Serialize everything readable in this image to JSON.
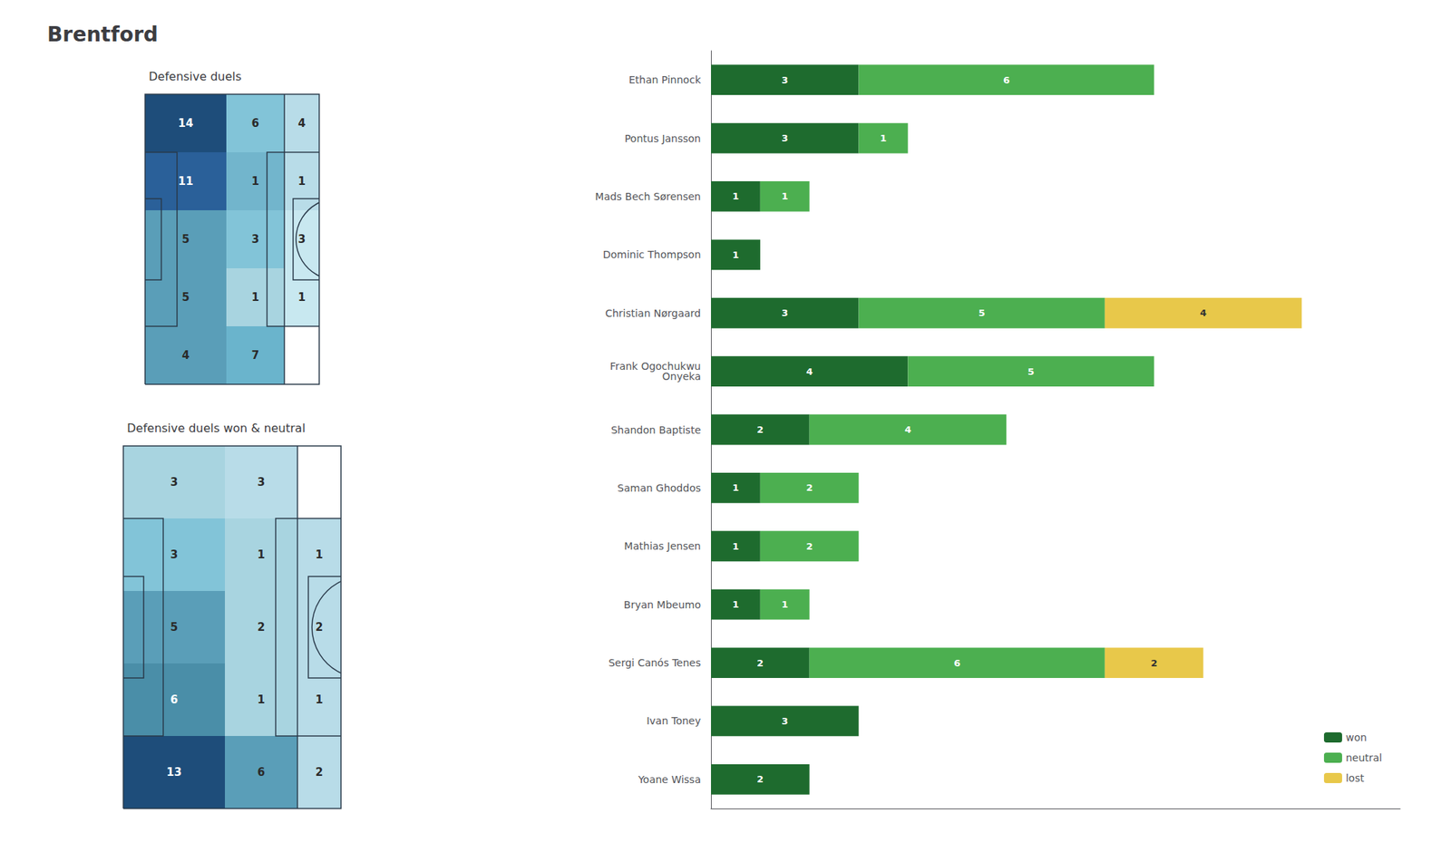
{
  "title": "Brentford",
  "chart_data": [
    {
      "type": "heatmap",
      "title": "Defensive duels",
      "values": [
        [
          14,
          6,
          4
        ],
        [
          11,
          1,
          1
        ],
        [
          5,
          3,
          3
        ],
        [
          5,
          1,
          1
        ],
        [
          4,
          7,
          0
        ]
      ],
      "value_labels": [
        [
          "14",
          "6",
          "4"
        ],
        [
          "11",
          "1",
          "1"
        ],
        [
          "5",
          "3",
          "3"
        ],
        [
          "5",
          "1",
          "1"
        ],
        [
          "4",
          "7",
          null
        ]
      ],
      "colors": [
        [
          "#1e4d7a",
          "#82c4d8",
          "#b8dce8"
        ],
        [
          "#2a6099",
          "#72b5cc",
          "#b8dce8"
        ],
        [
          "#5a9eb8",
          "#82c4d8",
          "#c8e8f0"
        ],
        [
          "#5a9eb8",
          "#a8d4e0",
          "#c8e8f0"
        ],
        [
          "#5a9eb8",
          "#6ab4cc",
          "#ffffff"
        ]
      ],
      "color": "#2a3a4a",
      "data_labels": true,
      "tick_labels": false,
      "grid": false
    },
    {
      "type": "heatmap",
      "title": "Defensive duels won & neutral",
      "values": [
        [
          3,
          3,
          0
        ],
        [
          3,
          1,
          1
        ],
        [
          5,
          2,
          2
        ],
        [
          6,
          1,
          1
        ],
        [
          13,
          6,
          2
        ]
      ],
      "value_labels": [
        [
          "3",
          "3",
          null
        ],
        [
          "3",
          "1",
          "1"
        ],
        [
          "5",
          "2",
          "2"
        ],
        [
          "6",
          "1",
          "1"
        ],
        [
          "13",
          "6",
          "2"
        ]
      ],
      "colors": [
        [
          "#a8d4e0",
          "#b8dce8",
          "#ffffff"
        ],
        [
          "#82c4d8",
          "#a8d4e0",
          "#b8dce8"
        ],
        [
          "#5a9eb8",
          "#a8d4e0",
          "#b8dce8"
        ],
        [
          "#4a8ea8",
          "#a8d4e0",
          "#b8dce8"
        ],
        [
          "#1e4d7a",
          "#5a9eb8",
          "#b8dce8"
        ]
      ],
      "color": "#2a3a4a",
      "data_labels": true,
      "tick_labels": false,
      "grid": false
    },
    {
      "type": "bar",
      "orientation": "horizontal",
      "stacked": true,
      "categories": [
        "Ethan Pinnock",
        "Pontus Jansson",
        "Mads Bech Sørensen",
        "Dominic Thompson",
        "Christian Nørgaard",
        "Frank Ogochukwu\nOnyeka",
        "Shandon Baptiste",
        "Saman Ghoddos",
        "Mathias Jensen",
        "Bryan Mbeumo",
        "Sergi Canós Tenes",
        "Ivan Toney",
        "Yoane Wissa"
      ],
      "series": [
        {
          "name": "won",
          "color": "#1e6b2e",
          "values": [
            3,
            3,
            1,
            1,
            3,
            4,
            2,
            1,
            1,
            1,
            2,
            3,
            2
          ],
          "value_labels": [
            "3",
            "3",
            "1",
            "1",
            "3",
            "4",
            "2",
            "1",
            "1",
            "1",
            "2",
            "3",
            "2"
          ]
        },
        {
          "name": "neutral",
          "color": "#4caf50",
          "values": [
            6,
            1,
            1,
            0,
            5,
            5,
            4,
            2,
            2,
            1,
            6,
            0,
            0
          ],
          "value_labels": [
            "6",
            "1",
            "1",
            null,
            "5",
            "5",
            "4",
            "2",
            "2",
            "1",
            "6",
            null,
            null
          ]
        },
        {
          "name": "lost",
          "color": "#e8c84a",
          "values": [
            0,
            0,
            0,
            0,
            4,
            0,
            0,
            0,
            0,
            0,
            2,
            0,
            0
          ],
          "value_labels": [
            null,
            null,
            null,
            null,
            "4",
            null,
            null,
            null,
            null,
            null,
            "2",
            null,
            null
          ]
        }
      ],
      "xlim": [
        0,
        14
      ],
      "tick_labels": "y",
      "grid": false,
      "legend": "lower right",
      "data_labels": true
    }
  ]
}
